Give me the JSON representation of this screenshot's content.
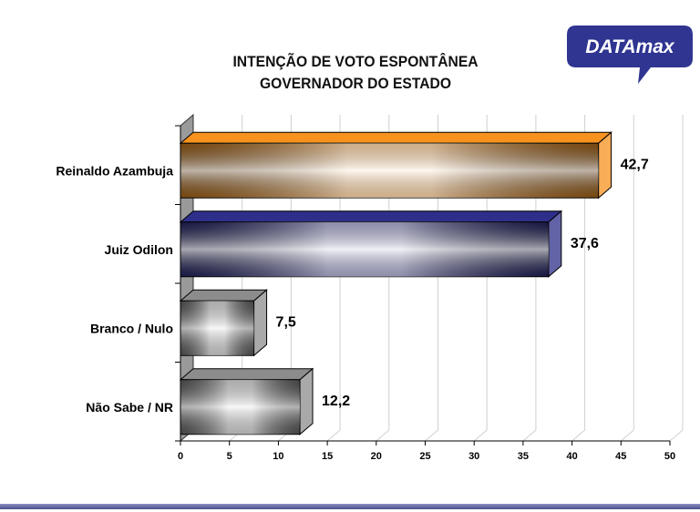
{
  "logo_text": "DATAmax",
  "chart_data": {
    "type": "bar",
    "orientation": "horizontal",
    "title": "INTENÇÃO DE VOTO ESPONTÂNEA",
    "subtitle": "GOVERNADOR DO ESTADO",
    "categories": [
      "Reinaldo Azambuja",
      "Juiz Odilon",
      "Branco / Nulo",
      "Não Sabe / NR"
    ],
    "values": [
      42.7,
      37.6,
      7.5,
      12.2
    ],
    "value_labels": [
      "42,7",
      "37,6",
      "7,5",
      "12,2"
    ],
    "colors": [
      "#f7921e",
      "#2e2f8a",
      "#8c8c8c",
      "#8c8c8c"
    ],
    "xlim": [
      0,
      50
    ],
    "xticks": [
      0,
      5,
      10,
      15,
      20,
      25,
      30,
      35,
      40,
      45,
      50
    ],
    "grid": true,
    "xlabel": "",
    "ylabel": ""
  }
}
